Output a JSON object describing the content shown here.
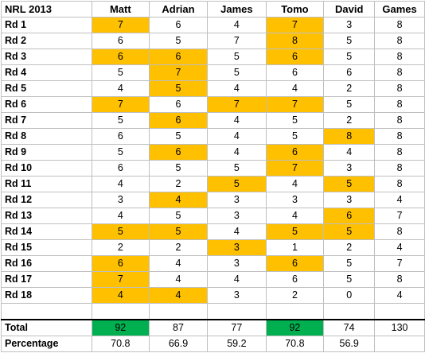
{
  "colors": {
    "highlight": "#ffc000",
    "winner": "#00b050",
    "grid": "#bfbfbf"
  },
  "header": {
    "title": "NRL 2013",
    "players": [
      "Matt",
      "Adrian",
      "James",
      "Tomo",
      "David"
    ],
    "games_label": "Games"
  },
  "rounds": [
    {
      "label": "Rd 1",
      "scores": [
        7,
        6,
        4,
        7,
        3
      ],
      "games": 8,
      "highlight": [
        true,
        false,
        false,
        true,
        false
      ]
    },
    {
      "label": "Rd 2",
      "scores": [
        6,
        5,
        7,
        8,
        5
      ],
      "games": 8,
      "highlight": [
        false,
        false,
        false,
        true,
        false
      ]
    },
    {
      "label": "Rd 3",
      "scores": [
        6,
        6,
        5,
        6,
        5
      ],
      "games": 8,
      "highlight": [
        true,
        true,
        false,
        true,
        false
      ]
    },
    {
      "label": "Rd 4",
      "scores": [
        5,
        7,
        5,
        6,
        6
      ],
      "games": 8,
      "highlight": [
        false,
        true,
        false,
        false,
        false
      ]
    },
    {
      "label": "Rd 5",
      "scores": [
        4,
        5,
        4,
        4,
        2
      ],
      "games": 8,
      "highlight": [
        false,
        true,
        false,
        false,
        false
      ]
    },
    {
      "label": "Rd 6",
      "scores": [
        7,
        6,
        7,
        7,
        5
      ],
      "games": 8,
      "highlight": [
        true,
        false,
        true,
        true,
        false
      ]
    },
    {
      "label": "Rd 7",
      "scores": [
        5,
        6,
        4,
        5,
        2
      ],
      "games": 8,
      "highlight": [
        false,
        true,
        false,
        false,
        false
      ]
    },
    {
      "label": "Rd 8",
      "scores": [
        6,
        5,
        4,
        5,
        8
      ],
      "games": 8,
      "highlight": [
        false,
        false,
        false,
        false,
        true
      ]
    },
    {
      "label": "Rd 9",
      "scores": [
        5,
        6,
        4,
        6,
        4
      ],
      "games": 8,
      "highlight": [
        false,
        true,
        false,
        true,
        false
      ]
    },
    {
      "label": "Rd 10",
      "scores": [
        6,
        5,
        5,
        7,
        3
      ],
      "games": 8,
      "highlight": [
        false,
        false,
        false,
        true,
        false
      ]
    },
    {
      "label": "Rd 11",
      "scores": [
        4,
        2,
        5,
        4,
        5
      ],
      "games": 8,
      "highlight": [
        false,
        false,
        true,
        false,
        true
      ]
    },
    {
      "label": "Rd 12",
      "scores": [
        3,
        4,
        3,
        3,
        3
      ],
      "games": 4,
      "highlight": [
        false,
        true,
        false,
        false,
        false
      ]
    },
    {
      "label": "Rd 13",
      "scores": [
        4,
        5,
        3,
        4,
        6
      ],
      "games": 7,
      "highlight": [
        false,
        false,
        false,
        false,
        true
      ]
    },
    {
      "label": "Rd 14",
      "scores": [
        5,
        5,
        4,
        5,
        5
      ],
      "games": 8,
      "highlight": [
        true,
        true,
        false,
        true,
        true
      ]
    },
    {
      "label": "Rd 15",
      "scores": [
        2,
        2,
        3,
        1,
        2
      ],
      "games": 4,
      "highlight": [
        false,
        false,
        true,
        false,
        false
      ]
    },
    {
      "label": "Rd 16",
      "scores": [
        6,
        4,
        3,
        6,
        5
      ],
      "games": 7,
      "highlight": [
        true,
        false,
        false,
        true,
        false
      ]
    },
    {
      "label": "Rd 17",
      "scores": [
        7,
        4,
        4,
        6,
        5
      ],
      "games": 8,
      "highlight": [
        true,
        false,
        false,
        false,
        false
      ]
    },
    {
      "label": "Rd 18",
      "scores": [
        4,
        4,
        3,
        2,
        0
      ],
      "games": 4,
      "highlight": [
        true,
        true,
        false,
        false,
        false
      ]
    }
  ],
  "total": {
    "label": "Total",
    "scores": [
      92,
      87,
      77,
      92,
      74
    ],
    "games": 130,
    "winner": [
      true,
      false,
      false,
      true,
      false
    ]
  },
  "percentage": {
    "label": "Percentage",
    "values": [
      "70.8",
      "66.9",
      "59.2",
      "70.8",
      "56.9"
    ]
  }
}
